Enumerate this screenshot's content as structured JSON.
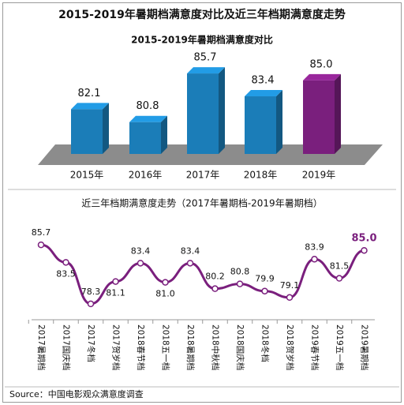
{
  "title": "2015-2019年暑期档满意度对比及近三年档期满意度走势",
  "source": "Source：中国电影观众满意度调查",
  "chart_data": [
    {
      "type": "bar3d",
      "title": "2015-2019年暑期档满意度对比",
      "categories": [
        "2015年",
        "2016年",
        "2017年",
        "2018年",
        "2019年"
      ],
      "values": [
        82.1,
        80.8,
        85.7,
        83.4,
        85.0
      ],
      "value_labels": [
        "82.1",
        "80.8",
        "85.7",
        "83.4",
        "85.0"
      ],
      "colors": [
        "#1b7db8",
        "#1b7db8",
        "#1b7db8",
        "#1b7db8",
        "#7a1f7d"
      ],
      "ylim": [
        77.6,
        86.5
      ]
    },
    {
      "type": "line",
      "title": "近三年档期满意度走势（2017年暑期档-2019年暑期档）",
      "categories": [
        "2017暑期档",
        "2017国庆档",
        "2017冬档",
        "2017贺岁档",
        "2018春节档",
        "2018五一档",
        "2018暑期档",
        "2018中秋档",
        "2018国庆档",
        "2018冬档",
        "2018贺岁档",
        "2019春节档",
        "2019五一档",
        "2019暑期档"
      ],
      "values": [
        85.7,
        83.5,
        78.3,
        81.1,
        83.4,
        81.0,
        83.4,
        80.2,
        80.8,
        79.9,
        79.1,
        83.9,
        81.5,
        85.0
      ],
      "value_labels": [
        "85.7",
        "83.5",
        "78.3",
        "81.1",
        "83.4",
        "81.0",
        "83.4",
        "80.2",
        "80.8",
        "79.9",
        "79.1",
        "83.9",
        "81.5",
        "85.0"
      ],
      "color": "#7a1f7d",
      "ylim": [
        77,
        87
      ]
    }
  ]
}
